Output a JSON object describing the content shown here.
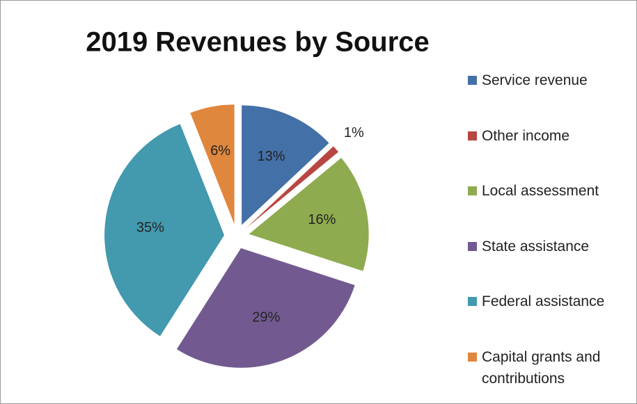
{
  "chart_data": {
    "type": "pie",
    "title": "2019 Revenues by Source",
    "categories": [
      "Service revenue",
      "Other income",
      "Local assessment",
      "State assistance",
      "Federal assistance",
      "Capital grants and contributions"
    ],
    "values": [
      13,
      1,
      16,
      29,
      35,
      6
    ],
    "value_labels": [
      "13%",
      "1%",
      "16%",
      "29%",
      "35%",
      "6%"
    ],
    "colors": [
      "#4470a8",
      "#b84642",
      "#8fab4f",
      "#725a91",
      "#4399ae",
      "#e0873e"
    ],
    "legend": "right"
  }
}
